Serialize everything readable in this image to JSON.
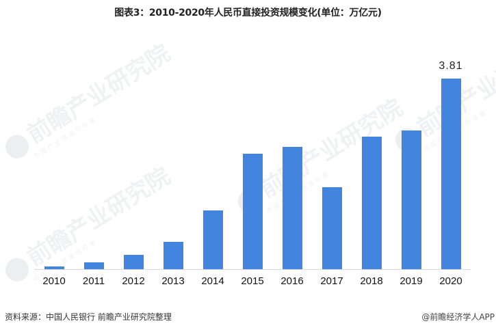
{
  "title": "图表3：2010-2020年人民币直接投资规模变化(单位：万亿元)",
  "source": "资料来源：中国人民银行 前瞻产业研究院整理",
  "credit": "@前瞻经济学人APP",
  "watermark": {
    "text": "前瞻产业研究院",
    "sub": "中国产业咨询领导者"
  },
  "colors": {
    "bar": "#4384DF",
    "baseline": "#D9D9D9",
    "text": "#222222"
  },
  "chart_data": {
    "type": "bar",
    "title": "图表3：2010-2020年人民币直接投资规模变化(单位：万亿元)",
    "xlabel": "",
    "ylabel": "万亿元",
    "categories": [
      "2010",
      "2011",
      "2012",
      "2013",
      "2014",
      "2015",
      "2016",
      "2017",
      "2018",
      "2019",
      "2020"
    ],
    "values": [
      0.05,
      0.13,
      0.29,
      0.55,
      1.17,
      2.31,
      2.45,
      1.64,
      2.65,
      2.77,
      3.81
    ],
    "data_labels": [
      {
        "category": "2020",
        "text": "3.81"
      }
    ],
    "ylim": [
      0,
      4.29
    ],
    "grid": false,
    "legend": null
  }
}
